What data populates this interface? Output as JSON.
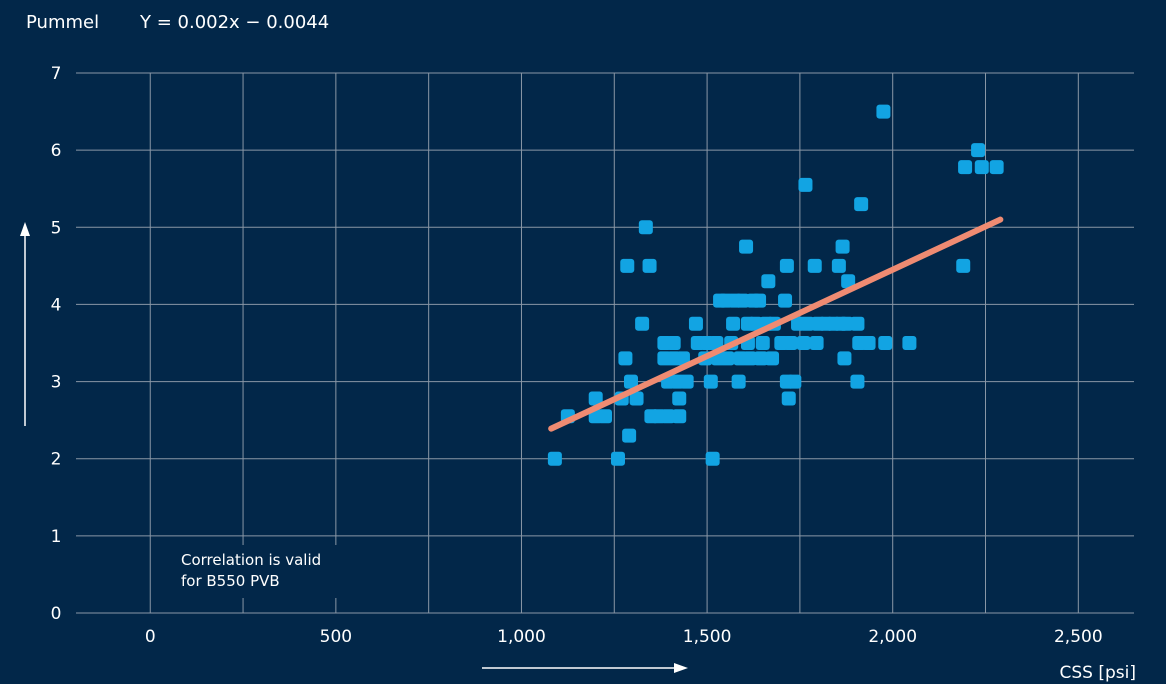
{
  "chart_data": {
    "type": "scatter",
    "title": "Pummel",
    "equation": "Y = 0.002x − 0.0044",
    "xlabel": "CSS [psi]",
    "ylabel": "",
    "xlim": [
      -200,
      2650
    ],
    "ylim": [
      0,
      7
    ],
    "xticks": [
      0,
      500,
      1000,
      1500,
      2000,
      2500
    ],
    "xtick_labels": [
      "0",
      "500",
      "1,000",
      "1,500",
      "2,000",
      "2,500"
    ],
    "yticks": [
      0,
      1,
      2,
      3,
      4,
      5,
      6,
      7
    ],
    "ytick_labels": [
      "0",
      "1",
      "2",
      "3",
      "4",
      "5",
      "6",
      "7"
    ],
    "grid": true,
    "annotation": [
      "Correlation is valid",
      "for B550 PVB"
    ],
    "colors": {
      "background": "#022749",
      "points": "#12a4e3",
      "trendline": "#ef8b72",
      "grid": "#8a97a6",
      "text": "#ffffff"
    },
    "trendline": {
      "x": [
        1080,
        2290
      ],
      "y": [
        2.39,
        5.1
      ]
    },
    "points": [
      [
        1090,
        2.0
      ],
      [
        1125,
        2.55
      ],
      [
        1200,
        2.78
      ],
      [
        1200,
        2.55
      ],
      [
        1225,
        2.55
      ],
      [
        1260,
        2.0
      ],
      [
        1270,
        2.78
      ],
      [
        1280,
        3.3
      ],
      [
        1285,
        4.5
      ],
      [
        1290,
        2.3
      ],
      [
        1295,
        3.0
      ],
      [
        1310,
        2.78
      ],
      [
        1325,
        3.75
      ],
      [
        1335,
        5.0
      ],
      [
        1345,
        4.5
      ],
      [
        1350,
        2.55
      ],
      [
        1370,
        2.55
      ],
      [
        1385,
        3.5
      ],
      [
        1385,
        3.3
      ],
      [
        1395,
        3.0
      ],
      [
        1395,
        2.55
      ],
      [
        1410,
        3.5
      ],
      [
        1410,
        3.3
      ],
      [
        1420,
        3.0
      ],
      [
        1425,
        2.78
      ],
      [
        1425,
        2.55
      ],
      [
        1435,
        3.3
      ],
      [
        1445,
        3.0
      ],
      [
        1470,
        3.75
      ],
      [
        1475,
        3.5
      ],
      [
        1495,
        3.3
      ],
      [
        1500,
        3.5
      ],
      [
        1510,
        3.0
      ],
      [
        1515,
        2.0
      ],
      [
        1525,
        3.5
      ],
      [
        1530,
        3.3
      ],
      [
        1535,
        4.05
      ],
      [
        1550,
        4.05
      ],
      [
        1555,
        3.3
      ],
      [
        1565,
        3.5
      ],
      [
        1570,
        3.75
      ],
      [
        1575,
        4.05
      ],
      [
        1585,
        3.0
      ],
      [
        1590,
        3.3
      ],
      [
        1595,
        4.05
      ],
      [
        1605,
        4.75
      ],
      [
        1610,
        3.75
      ],
      [
        1610,
        3.5
      ],
      [
        1615,
        3.3
      ],
      [
        1625,
        4.05
      ],
      [
        1630,
        3.75
      ],
      [
        1640,
        4.05
      ],
      [
        1645,
        3.3
      ],
      [
        1650,
        3.5
      ],
      [
        1660,
        3.75
      ],
      [
        1665,
        4.3
      ],
      [
        1675,
        3.3
      ],
      [
        1680,
        3.75
      ],
      [
        1700,
        3.5
      ],
      [
        1710,
        4.05
      ],
      [
        1715,
        4.5
      ],
      [
        1715,
        3.0
      ],
      [
        1720,
        2.78
      ],
      [
        1725,
        3.5
      ],
      [
        1735,
        3.0
      ],
      [
        1745,
        3.75
      ],
      [
        1760,
        3.5
      ],
      [
        1765,
        5.55
      ],
      [
        1770,
        3.75
      ],
      [
        1790,
        4.5
      ],
      [
        1795,
        3.5
      ],
      [
        1800,
        3.75
      ],
      [
        1820,
        3.75
      ],
      [
        1840,
        3.75
      ],
      [
        1855,
        4.5
      ],
      [
        1860,
        3.75
      ],
      [
        1865,
        4.75
      ],
      [
        1870,
        3.3
      ],
      [
        1875,
        3.75
      ],
      [
        1880,
        4.3
      ],
      [
        1905,
        3.75
      ],
      [
        1905,
        3.0
      ],
      [
        1910,
        3.5
      ],
      [
        1915,
        5.3
      ],
      [
        1935,
        3.5
      ],
      [
        1975,
        6.5
      ],
      [
        1980,
        3.5
      ],
      [
        2045,
        3.5
      ],
      [
        2190,
        4.5
      ],
      [
        2195,
        5.78
      ],
      [
        2230,
        6.0
      ],
      [
        2240,
        5.78
      ],
      [
        2280,
        5.78
      ]
    ]
  }
}
